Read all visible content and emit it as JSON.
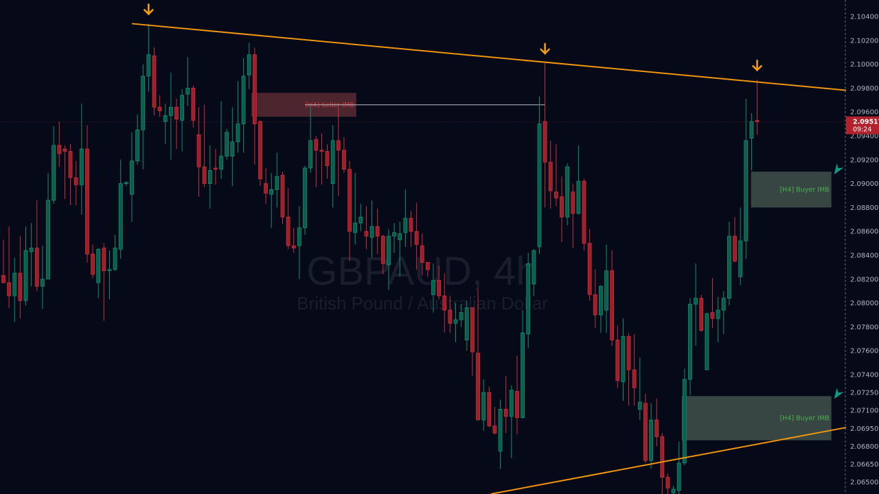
{
  "chart_data": {
    "type": "candlestick",
    "symbol_watermark": "GBPAUD, 4h",
    "description_watermark": "British Pound / Australian Dollar",
    "ylim": [
      2.064,
      2.1054
    ],
    "y_ticks": [
      "2.10400",
      "2.10200",
      "2.10000",
      "2.09800",
      "2.09600",
      "2.09400",
      "2.09200",
      "2.09000",
      "2.08800",
      "2.08600",
      "2.08400",
      "2.08200",
      "2.08000",
      "2.07800",
      "2.07600",
      "2.07400",
      "2.07250",
      "2.07100",
      "2.06950",
      "2.06800",
      "2.06650",
      "2.06500"
    ],
    "current_price": "2.09517",
    "countdown": "09:24",
    "colors": {
      "up": "#0f8f70",
      "up_fill": "#0b5e4c",
      "down": "#c6303c",
      "down_fill": "#9c1f2a",
      "trendline": "#f0960f",
      "arrow": "#f59c12",
      "buyer_zone": "#3a4a44",
      "buyer_text": "#4caf50",
      "seller_zone": "#5a2a32",
      "seller_text": "#d33a44",
      "buyer_arrow": "#0a9e86",
      "price_tag": "#b2222d"
    },
    "candles_ohlc": [
      [
        2.0823,
        2.0853,
        2.0817,
        2.0817
      ],
      [
        2.0817,
        2.0864,
        2.0796,
        2.0806
      ],
      [
        2.0806,
        2.0838,
        2.0784,
        2.0825
      ],
      [
        2.0825,
        2.0856,
        2.0787,
        2.0802
      ],
      [
        2.0802,
        2.0864,
        2.0798,
        2.0844
      ],
      [
        2.0843,
        2.0867,
        2.0814,
        2.0846
      ],
      [
        2.0846,
        2.0886,
        2.081,
        2.0814
      ],
      [
        2.0814,
        2.0848,
        2.0795,
        2.082
      ],
      [
        2.082,
        2.0909,
        2.082,
        2.0886
      ],
      [
        2.0886,
        2.0948,
        2.0883,
        2.0932
      ],
      [
        2.0932,
        2.0952,
        2.0914,
        2.0925
      ],
      [
        2.0929,
        2.0932,
        2.0887,
        2.0927
      ],
      [
        2.0927,
        2.0933,
        2.0882,
        2.0905
      ],
      [
        2.0905,
        2.0919,
        2.0882,
        2.0899
      ],
      [
        2.0899,
        2.0967,
        2.0874,
        2.0929
      ],
      [
        2.0929,
        2.0949,
        2.0834,
        2.0841
      ],
      [
        2.0841,
        2.0849,
        2.0821,
        2.0824
      ],
      [
        2.0817,
        2.0846,
        2.0804,
        2.0845
      ],
      [
        2.0846,
        2.085,
        2.0785,
        2.0827
      ],
      [
        2.0827,
        2.0844,
        2.0803,
        2.0828
      ],
      [
        2.0828,
        2.0857,
        2.0827,
        2.0846
      ],
      [
        2.0845,
        2.092,
        2.0837,
        2.09
      ],
      [
        2.09,
        2.0902,
        2.0898,
        2.0901
      ],
      [
        2.0891,
        2.0943,
        2.0868,
        2.0919
      ],
      [
        2.0919,
        2.0958,
        2.0916,
        2.0945
      ],
      [
        2.0945,
        2.1,
        2.0912,
        2.099
      ],
      [
        2.099,
        2.1034,
        2.0977,
        2.1008
      ],
      [
        2.1007,
        2.1014,
        2.0957,
        2.0964
      ],
      [
        2.0964,
        2.0974,
        2.0956,
        2.0961
      ],
      [
        2.0952,
        2.0967,
        2.0933,
        2.0957
      ],
      [
        2.0957,
        2.0993,
        2.092,
        2.0964
      ],
      [
        2.0964,
        2.0971,
        2.0929,
        2.0954
      ],
      [
        2.0953,
        2.0979,
        2.0927,
        2.0974
      ],
      [
        2.0975,
        2.1006,
        2.0965,
        2.098
      ],
      [
        2.098,
        2.0982,
        2.0947,
        2.0953
      ],
      [
        2.0941,
        2.0964,
        2.0889,
        2.0914
      ],
      [
        2.0914,
        2.0966,
        2.0897,
        2.09
      ],
      [
        2.09,
        2.0932,
        2.0879,
        2.0911
      ],
      [
        2.0913,
        2.0929,
        2.0899,
        2.0912
      ],
      [
        2.0912,
        2.0969,
        2.0904,
        2.0923
      ],
      [
        2.0923,
        2.0946,
        2.092,
        2.0943
      ],
      [
        2.0923,
        2.0964,
        2.0898,
        2.0935
      ],
      [
        2.0935,
        2.0986,
        2.0926,
        2.095
      ],
      [
        2.095,
        2.1005,
        2.0926,
        2.099
      ],
      [
        2.0991,
        2.1018,
        2.0979,
        2.1008
      ],
      [
        2.1008,
        2.1014,
        2.0916,
        2.095
      ],
      [
        2.0952,
        2.0953,
        2.0898,
        2.0904
      ],
      [
        2.09,
        2.0913,
        2.0883,
        2.0892
      ],
      [
        2.0891,
        2.0909,
        2.0863,
        2.0895
      ],
      [
        2.0895,
        2.0926,
        2.088,
        2.0906
      ],
      [
        2.0907,
        2.091,
        2.0866,
        2.0872
      ],
      [
        2.0872,
        2.0896,
        2.0845,
        2.0848
      ],
      [
        2.0848,
        2.0863,
        2.0842,
        2.0846
      ],
      [
        2.0848,
        2.0881,
        2.082,
        2.0863
      ],
      [
        2.0863,
        2.0915,
        2.0857,
        2.0913
      ],
      [
        2.0913,
        2.0966,
        2.0909,
        2.0936
      ],
      [
        2.0937,
        2.094,
        2.0897,
        2.0928
      ],
      [
        2.0928,
        2.0942,
        2.0899,
        2.0927
      ],
      [
        2.0927,
        2.0933,
        2.0904,
        2.0915
      ],
      [
        2.09,
        2.0949,
        2.088,
        2.0936
      ],
      [
        2.0936,
        2.0965,
        2.089,
        2.0928
      ],
      [
        2.0928,
        2.0939,
        2.0909,
        2.0912
      ],
      [
        2.0912,
        2.0919,
        2.0835,
        2.086
      ],
      [
        2.0859,
        2.0909,
        2.0849,
        2.0867
      ],
      [
        2.0867,
        2.0883,
        2.086,
        2.0872
      ],
      [
        2.086,
        2.0881,
        2.0845,
        2.0856
      ],
      [
        2.0855,
        2.0886,
        2.0838,
        2.0864
      ],
      [
        2.0864,
        2.0879,
        2.0841,
        2.0856
      ],
      [
        2.0856,
        2.0857,
        2.0824,
        2.0833
      ],
      [
        2.0832,
        2.0862,
        2.0811,
        2.0856
      ],
      [
        2.0856,
        2.0867,
        2.0842,
        2.0859
      ],
      [
        2.0853,
        2.0868,
        2.0822,
        2.0858
      ],
      [
        2.0859,
        2.0895,
        2.0847,
        2.0871
      ],
      [
        2.0871,
        2.0877,
        2.0847,
        2.086
      ],
      [
        2.086,
        2.0884,
        2.0828,
        2.0849
      ],
      [
        2.0848,
        2.0858,
        2.0823,
        2.0834
      ],
      [
        2.0834,
        2.0834,
        2.0822,
        2.0828
      ],
      [
        2.0807,
        2.0833,
        2.0792,
        2.0819
      ],
      [
        2.0819,
        2.0831,
        2.0803,
        2.0806
      ],
      [
        2.0806,
        2.0825,
        2.0775,
        2.0794
      ],
      [
        2.0794,
        2.0806,
        2.0775,
        2.0783
      ],
      [
        2.0783,
        2.08,
        2.0767,
        2.0786
      ],
      [
        2.0786,
        2.0799,
        2.078,
        2.0792
      ],
      [
        2.0769,
        2.0802,
        2.076,
        2.0796
      ],
      [
        2.0796,
        2.0796,
        2.0739,
        2.0759
      ],
      [
        2.0758,
        2.0812,
        2.0702,
        2.0702
      ],
      [
        2.0702,
        2.0736,
        2.0693,
        2.0725
      ],
      [
        2.0725,
        2.073,
        2.0696,
        2.0697
      ],
      [
        2.0697,
        2.0713,
        2.069,
        2.0691
      ],
      [
        2.0676,
        2.0719,
        2.0661,
        2.0711
      ],
      [
        2.0711,
        2.0739,
        2.0691,
        2.0705
      ],
      [
        2.0705,
        2.0731,
        2.067,
        2.0727
      ],
      [
        2.0726,
        2.0756,
        2.069,
        2.0704
      ],
      [
        2.0704,
        2.0794,
        2.0703,
        2.0775
      ],
      [
        2.0774,
        2.0842,
        2.0762,
        2.0833
      ],
      [
        2.0816,
        2.0845,
        2.0806,
        2.0844
      ],
      [
        2.0847,
        2.0973,
        2.0841,
        2.095
      ],
      [
        2.0952,
        2.1001,
        2.088,
        2.0918
      ],
      [
        2.0918,
        2.0936,
        2.0879,
        2.0894
      ],
      [
        2.0893,
        2.0933,
        2.0881,
        2.0888
      ],
      [
        2.0889,
        2.0906,
        2.0851,
        2.0872
      ],
      [
        2.0872,
        2.0917,
        2.0865,
        2.0914
      ],
      [
        2.0893,
        2.09,
        2.0846,
        2.0875
      ],
      [
        2.0875,
        2.0932,
        2.0874,
        2.0902
      ],
      [
        2.0902,
        2.0904,
        2.0844,
        2.085
      ],
      [
        2.085,
        2.0862,
        2.0802,
        2.0807
      ],
      [
        2.0807,
        2.0828,
        2.0779,
        2.079
      ],
      [
        2.079,
        2.0815,
        2.0775,
        2.0814
      ],
      [
        2.0794,
        2.0849,
        2.0775,
        2.0827
      ],
      [
        2.0827,
        2.0844,
        2.0764,
        2.0769
      ],
      [
        2.0769,
        2.0781,
        2.0729,
        2.0735
      ],
      [
        2.0734,
        2.0787,
        2.0718,
        2.0772
      ],
      [
        2.0772,
        2.0775,
        2.0714,
        2.0744
      ],
      [
        2.0744,
        2.0774,
        2.0714,
        2.0729
      ],
      [
        2.0711,
        2.0754,
        2.0702,
        2.0717
      ],
      [
        2.0716,
        2.0724,
        2.0666,
        2.0668
      ],
      [
        2.0668,
        2.0716,
        2.0661,
        2.0702
      ],
      [
        2.0702,
        2.072,
        2.068,
        2.0688
      ],
      [
        2.0688,
        2.0691,
        2.064,
        2.0654
      ],
      [
        2.0654,
        2.0657,
        2.064,
        2.0645
      ],
      [
        2.0641,
        2.0647,
        2.064,
        2.0644
      ],
      [
        2.0643,
        2.0684,
        2.064,
        2.0666
      ],
      [
        2.0666,
        2.0745,
        2.0664,
        2.0736
      ],
      [
        2.0736,
        2.0804,
        2.0723,
        2.0799
      ],
      [
        2.0799,
        2.0833,
        2.0764,
        2.0804
      ],
      [
        2.0804,
        2.0807,
        2.0776,
        2.0777
      ],
      [
        2.0744,
        2.0792,
        2.0744,
        2.0791
      ],
      [
        2.0792,
        2.0821,
        2.0779,
        2.0787
      ],
      [
        2.0787,
        2.0805,
        2.0767,
        2.0794
      ],
      [
        2.0794,
        2.081,
        2.0774,
        2.0804
      ],
      [
        2.0804,
        2.0868,
        2.0798,
        2.0856
      ],
      [
        2.0856,
        2.0872,
        2.0834,
        2.0835
      ],
      [
        2.0822,
        2.088,
        2.0815,
        2.0852
      ],
      [
        2.0852,
        2.0971,
        2.0837,
        2.0936
      ],
      [
        2.0938,
        2.0959,
        2.0911,
        2.0952
      ],
      [
        2.0953,
        2.0987,
        2.0941,
        2.09517
      ]
    ],
    "trendlines": [
      {
        "from_bar": 24,
        "from_price": 2.1034,
        "to_bar": 152.3,
        "to_price": 2.0978
      },
      {
        "from_bar": 88.3,
        "from_price": 2.064,
        "to_bar": 152.3,
        "to_price": 2.0696
      }
    ],
    "high_markers_bars": [
      27,
      98,
      136
    ],
    "zones": [
      {
        "label": "[H4] Seller IMB",
        "kind": "seller",
        "from_bar": 45.4,
        "to_bar": 64.2,
        "top": 2.0976,
        "bottom": 2.0956
      },
      {
        "label": "[H4] Buyer IMB",
        "kind": "buyer",
        "from_bar": 134.9,
        "to_bar": 149.3,
        "top": 2.091,
        "bottom": 2.088
      },
      {
        "label": "[H4] Buyer IMB",
        "kind": "buyer",
        "from_bar": 122.5,
        "to_bar": 149.3,
        "top": 2.0722,
        "bottom": 2.0685
      }
    ],
    "seller_level_line": {
      "price": 2.0966,
      "from_bar": 55,
      "to_bar": 98
    }
  }
}
